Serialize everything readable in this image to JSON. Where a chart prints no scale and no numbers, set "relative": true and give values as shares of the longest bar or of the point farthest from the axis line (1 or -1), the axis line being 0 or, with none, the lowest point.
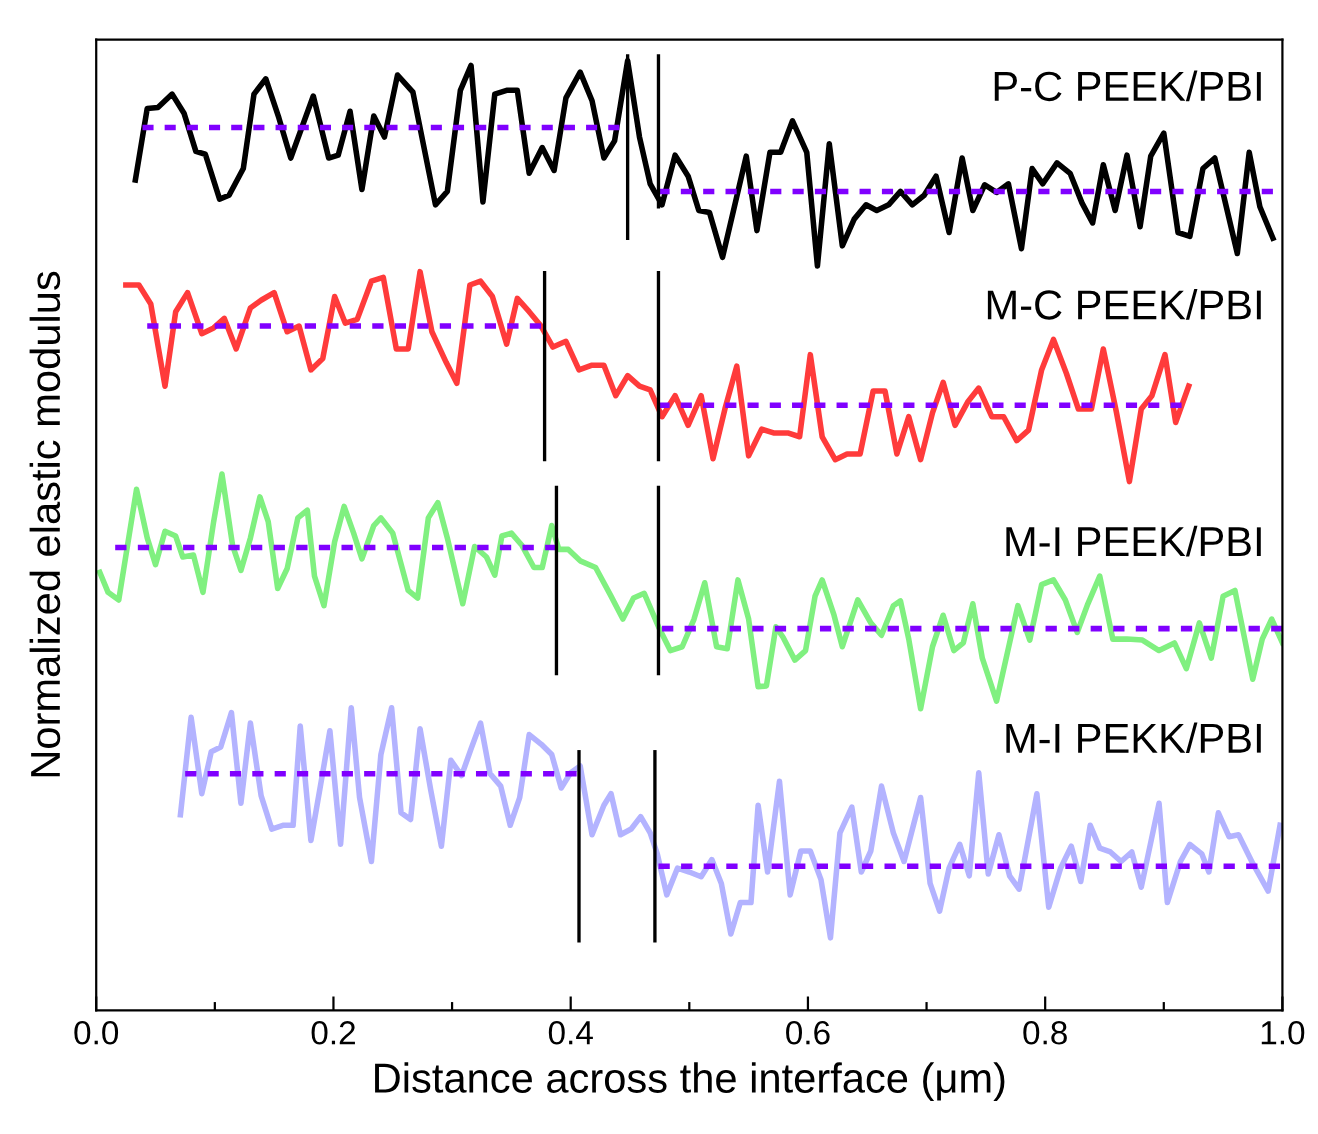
{
  "chart_data": {
    "type": "line",
    "relative": true,
    "xlabel": "Distance across the interface (μm)",
    "ylabel": "Normalized elastic modulus",
    "xlim": [
      0,
      1.0
    ],
    "xticks": [
      {
        "value": 0,
        "label": "0.0"
      },
      {
        "value": 0.1,
        "label": null
      },
      {
        "value": 0.2,
        "label": "0.2"
      },
      {
        "value": 0.3,
        "label": null
      },
      {
        "value": 0.4,
        "label": "0.4"
      },
      {
        "value": 0.5,
        "label": null
      },
      {
        "value": 0.6,
        "label": "0.6"
      },
      {
        "value": 0.7,
        "label": null
      },
      {
        "value": 0.8,
        "label": "0.8"
      },
      {
        "value": 0.9,
        "label": null
      },
      {
        "value": 1.0,
        "label": "1.0"
      }
    ],
    "series": [
      {
        "name": "P-C PEEK/PBI",
        "type": "line",
        "color": "#000000",
        "x": [
          0.033,
          0.043,
          0.052,
          0.064,
          0.074,
          0.084,
          0.092,
          0.104,
          0.112,
          0.124,
          0.133,
          0.143,
          0.154,
          0.164,
          0.183,
          0.196,
          0.204,
          0.214,
          0.224,
          0.234,
          0.243,
          0.254,
          0.267,
          0.286,
          0.296,
          0.307,
          0.316,
          0.326,
          0.336,
          0.346,
          0.355,
          0.365,
          0.376,
          0.386,
          0.396,
          0.408,
          0.418,
          0.428,
          0.437,
          0.448,
          0.458,
          0.467,
          0.477,
          0.488,
          0.499,
          0.508,
          0.517,
          0.528,
          0.548,
          0.557,
          0.568,
          0.577,
          0.587,
          0.599,
          0.608,
          0.618,
          0.629,
          0.639,
          0.649,
          0.658,
          0.668,
          0.678,
          0.688,
          0.698,
          0.708,
          0.719,
          0.73,
          0.739,
          0.749,
          0.759,
          0.769,
          0.78,
          0.789,
          0.798,
          0.81,
          0.821,
          0.831,
          0.84,
          0.849,
          0.859,
          0.869,
          0.88,
          0.889,
          0.9,
          0.912,
          0.922,
          0.933,
          0.943,
          0.962,
          0.972,
          0.981,
          0.992
        ],
        "values": [
          0.87,
          0.945,
          0.946,
          0.96,
          0.94,
          0.9,
          0.897,
          0.85,
          0.854,
          0.882,
          0.96,
          0.976,
          0.935,
          0.893,
          0.958,
          0.893,
          0.896,
          0.942,
          0.86,
          0.937,
          0.915,
          0.98,
          0.962,
          0.844,
          0.858,
          0.964,
          0.99,
          0.847,
          0.96,
          0.964,
          0.964,
          0.877,
          0.904,
          0.88,
          0.956,
          0.983,
          0.953,
          0.893,
          0.911,
          0.995,
          0.915,
          0.866,
          0.844,
          0.896,
          0.874,
          0.838,
          0.836,
          0.789,
          0.895,
          0.817,
          0.899,
          0.899,
          0.932,
          0.899,
          0.78,
          0.908,
          0.801,
          0.829,
          0.844,
          0.838,
          0.844,
          0.858,
          0.844,
          0.854,
          0.874,
          0.815,
          0.893,
          0.838,
          0.865,
          0.857,
          0.866,
          0.798,
          0.882,
          0.866,
          0.888,
          0.877,
          0.846,
          0.825,
          0.886,
          0.838,
          0.896,
          0.821,
          0.895,
          0.919,
          0.815,
          0.811,
          0.882,
          0.893,
          0.793,
          0.899,
          0.842,
          0.809
        ]
      },
      {
        "type": "line",
        "color": "#8000ff",
        "line_style": "dashed",
        "x": [
          0.039,
          0.441
        ],
        "values": [
          0.925,
          0.925
        ]
      },
      {
        "type": "line",
        "color": "#8000ff",
        "line_style": "dashed",
        "x": [
          0.474,
          0.992
        ],
        "values": [
          0.858,
          0.858
        ]
      },
      {
        "type": "line",
        "color": "#000000",
        "line_style": "solid",
        "x": [
          0.448,
          0.448
        ],
        "values": [
          1.0,
          0.809
        ]
      },
      {
        "type": "line",
        "color": "#000000",
        "line_style": "solid",
        "x": [
          0.474,
          0.474
        ],
        "values": [
          1.0,
          0.842
        ]
      },
      {
        "name": "M-C PEEK/PBI",
        "type": "line",
        "color": "#ff3b3b",
        "x": [
          0.025,
          0.036,
          0.046,
          0.058,
          0.067,
          0.077,
          0.089,
          0.099,
          0.108,
          0.118,
          0.13,
          0.139,
          0.15,
          0.161,
          0.171,
          0.181,
          0.191,
          0.201,
          0.21,
          0.22,
          0.232,
          0.242,
          0.253,
          0.263,
          0.273,
          0.283,
          0.295,
          0.304,
          0.315,
          0.324,
          0.334,
          0.346,
          0.355,
          0.365,
          0.375,
          0.385,
          0.396,
          0.407,
          0.418,
          0.428,
          0.438,
          0.448,
          0.458,
          0.467,
          0.477,
          0.488,
          0.499,
          0.51,
          0.52,
          0.53,
          0.54,
          0.55,
          0.561,
          0.571,
          0.583,
          0.593,
          0.602,
          0.612,
          0.623,
          0.633,
          0.644,
          0.655,
          0.665,
          0.675,
          0.685,
          0.695,
          0.705,
          0.714,
          0.724,
          0.735,
          0.744,
          0.755,
          0.765,
          0.776,
          0.786,
          0.797,
          0.807,
          0.818,
          0.828,
          0.839,
          0.849,
          0.86,
          0.871,
          0.881,
          0.89,
          0.901,
          0.91,
          0.921
        ],
        "values": [
          0.76,
          0.76,
          0.74,
          0.654,
          0.732,
          0.752,
          0.709,
          0.715,
          0.725,
          0.693,
          0.736,
          0.744,
          0.752,
          0.711,
          0.717,
          0.671,
          0.683,
          0.748,
          0.72,
          0.724,
          0.764,
          0.768,
          0.693,
          0.693,
          0.774,
          0.711,
          0.679,
          0.657,
          0.76,
          0.764,
          0.748,
          0.698,
          0.746,
          0.732,
          0.717,
          0.695,
          0.701,
          0.671,
          0.676,
          0.676,
          0.644,
          0.665,
          0.654,
          0.65,
          0.622,
          0.644,
          0.613,
          0.644,
          0.578,
          0.63,
          0.675,
          0.581,
          0.609,
          0.605,
          0.605,
          0.601,
          0.687,
          0.601,
          0.577,
          0.583,
          0.583,
          0.649,
          0.649,
          0.583,
          0.622,
          0.577,
          0.626,
          0.658,
          0.613,
          0.638,
          0.652,
          0.622,
          0.622,
          0.597,
          0.608,
          0.671,
          0.703,
          0.667,
          0.63,
          0.63,
          0.693,
          0.627,
          0.554,
          0.63,
          0.644,
          0.687,
          0.616,
          0.654
        ]
      },
      {
        "type": "line",
        "color": "#8000ff",
        "line_style": "dashed",
        "x": [
          0.043,
          0.375
        ],
        "values": [
          0.717,
          0.717
        ]
      },
      {
        "type": "line",
        "color": "#8000ff",
        "line_style": "dashed",
        "x": [
          0.474,
          0.915
        ],
        "values": [
          0.634,
          0.634
        ]
      },
      {
        "type": "line",
        "color": "#000000",
        "line_style": "solid",
        "x": [
          0.378,
          0.378
        ],
        "values": [
          0.773,
          0.577
        ]
      },
      {
        "type": "line",
        "color": "#000000",
        "line_style": "solid",
        "x": [
          0.474,
          0.474
        ],
        "values": [
          0.773,
          0.577
        ]
      },
      {
        "name": "M-I PEEK/PBI",
        "type": "line",
        "color": "#80f080",
        "x": [
          0.003,
          0.01,
          0.019,
          0.034,
          0.043,
          0.05,
          0.058,
          0.067,
          0.073,
          0.082,
          0.09,
          0.099,
          0.106,
          0.115,
          0.122,
          0.13,
          0.138,
          0.145,
          0.153,
          0.161,
          0.17,
          0.178,
          0.184,
          0.192,
          0.201,
          0.209,
          0.217,
          0.224,
          0.234,
          0.24,
          0.25,
          0.263,
          0.271,
          0.28,
          0.288,
          0.296,
          0.309,
          0.319,
          0.329,
          0.336,
          0.342,
          0.35,
          0.359,
          0.369,
          0.376,
          0.384,
          0.39,
          0.398,
          0.408,
          0.421,
          0.434,
          0.444,
          0.453,
          0.462,
          0.474,
          0.484,
          0.494,
          0.504,
          0.513,
          0.523,
          0.532,
          0.541,
          0.55,
          0.558,
          0.565,
          0.573,
          0.579,
          0.589,
          0.598,
          0.606,
          0.612,
          0.622,
          0.629,
          0.642,
          0.653,
          0.662,
          0.672,
          0.678,
          0.685,
          0.695,
          0.705,
          0.714,
          0.723,
          0.731,
          0.739,
          0.747,
          0.759,
          0.77,
          0.777,
          0.787,
          0.797,
          0.807,
          0.817,
          0.827,
          0.836,
          0.846,
          0.857,
          0.869,
          0.882,
          0.896,
          0.909,
          0.919,
          0.93,
          0.94,
          0.95,
          0.96,
          0.975,
          0.983,
          0.991,
          1.0
        ],
        "values": [
          0.459,
          0.438,
          0.43,
          0.546,
          0.495,
          0.467,
          0.502,
          0.497,
          0.475,
          0.477,
          0.438,
          0.512,
          0.562,
          0.487,
          0.461,
          0.495,
          0.538,
          0.512,
          0.442,
          0.463,
          0.516,
          0.524,
          0.455,
          0.424,
          0.491,
          0.528,
          0.5,
          0.473,
          0.508,
          0.516,
          0.5,
          0.44,
          0.432,
          0.516,
          0.532,
          0.495,
          0.426,
          0.486,
          0.475,
          0.456,
          0.497,
          0.5,
          0.487,
          0.464,
          0.464,
          0.508,
          0.483,
          0.483,
          0.471,
          0.464,
          0.434,
          0.41,
          0.432,
          0.437,
          0.402,
          0.377,
          0.381,
          0.41,
          0.448,
          0.381,
          0.379,
          0.451,
          0.41,
          0.339,
          0.34,
          0.402,
          0.391,
          0.367,
          0.377,
          0.434,
          0.451,
          0.414,
          0.381,
          0.43,
          0.406,
          0.393,
          0.424,
          0.429,
          0.389,
          0.316,
          0.381,
          0.414,
          0.377,
          0.385,
          0.426,
          0.369,
          0.324,
          0.385,
          0.424,
          0.388,
          0.446,
          0.451,
          0.43,
          0.396,
          0.426,
          0.455,
          0.389,
          0.389,
          0.388,
          0.377,
          0.385,
          0.358,
          0.406,
          0.369,
          0.434,
          0.44,
          0.347,
          0.389,
          0.41,
          0.385
        ]
      },
      {
        "type": "line",
        "color": "#8000ff",
        "line_style": "dashed",
        "x": [
          0.016,
          0.388
        ],
        "values": [
          0.485,
          0.485
        ]
      },
      {
        "type": "line",
        "color": "#8000ff",
        "line_style": "dashed",
        "x": [
          0.477,
          1.0
        ],
        "values": [
          0.4,
          0.4
        ]
      },
      {
        "type": "line",
        "color": "#000000",
        "line_style": "solid",
        "x": [
          0.388,
          0.388
        ],
        "values": [
          0.548,
          0.353
        ]
      },
      {
        "type": "line",
        "color": "#000000",
        "line_style": "solid",
        "x": [
          0.474,
          0.474
        ],
        "values": [
          0.548,
          0.353
        ]
      },
      {
        "name": "M-I PEKK/PBI",
        "type": "line",
        "color": "#b3b3ff",
        "x": [
          0.071,
          0.08,
          0.089,
          0.097,
          0.105,
          0.114,
          0.122,
          0.13,
          0.139,
          0.148,
          0.158,
          0.166,
          0.172,
          0.181,
          0.189,
          0.197,
          0.206,
          0.215,
          0.222,
          0.232,
          0.24,
          0.249,
          0.257,
          0.265,
          0.273,
          0.282,
          0.291,
          0.299,
          0.308,
          0.316,
          0.324,
          0.332,
          0.341,
          0.349,
          0.357,
          0.365,
          0.375,
          0.384,
          0.392,
          0.4,
          0.408,
          0.418,
          0.428,
          0.434,
          0.442,
          0.451,
          0.459,
          0.467,
          0.473,
          0.481,
          0.49,
          0.5,
          0.51,
          0.519,
          0.527,
          0.535,
          0.543,
          0.552,
          0.558,
          0.566,
          0.576,
          0.585,
          0.594,
          0.602,
          0.611,
          0.619,
          0.627,
          0.637,
          0.645,
          0.653,
          0.662,
          0.672,
          0.681,
          0.695,
          0.703,
          0.711,
          0.719,
          0.728,
          0.736,
          0.744,
          0.752,
          0.761,
          0.77,
          0.778,
          0.793,
          0.803,
          0.813,
          0.822,
          0.83,
          0.838,
          0.846,
          0.855,
          0.864,
          0.873,
          0.881,
          0.896,
          0.903,
          0.914,
          0.922,
          0.932,
          0.938,
          0.946,
          0.955,
          0.963,
          0.975,
          0.988,
          0.998
        ],
        "values": [
          0.205,
          0.307,
          0.227,
          0.271,
          0.276,
          0.312,
          0.217,
          0.301,
          0.225,
          0.19,
          0.194,
          0.194,
          0.298,
          0.178,
          0.235,
          0.293,
          0.174,
          0.317,
          0.223,
          0.156,
          0.268,
          0.317,
          0.207,
          0.2,
          0.295,
          0.231,
          0.172,
          0.262,
          0.246,
          0.274,
          0.301,
          0.248,
          0.235,
          0.194,
          0.223,
          0.289,
          0.279,
          0.268,
          0.233,
          0.249,
          0.256,
          0.184,
          0.215,
          0.227,
          0.184,
          0.19,
          0.203,
          0.186,
          0.164,
          0.121,
          0.149,
          0.145,
          0.14,
          0.158,
          0.133,
          0.08,
          0.113,
          0.113,
          0.215,
          0.145,
          0.24,
          0.121,
          0.167,
          0.167,
          0.137,
          0.076,
          0.186,
          0.213,
          0.145,
          0.167,
          0.235,
          0.186,
          0.156,
          0.223,
          0.133,
          0.104,
          0.149,
          0.174,
          0.141,
          0.249,
          0.143,
          0.184,
          0.141,
          0.127,
          0.227,
          0.108,
          0.149,
          0.172,
          0.135,
          0.194,
          0.17,
          0.166,
          0.156,
          0.166,
          0.129,
          0.217,
          0.113,
          0.156,
          0.174,
          0.164,
          0.145,
          0.207,
          0.182,
          0.184,
          0.154,
          0.125,
          0.194
        ]
      },
      {
        "type": "line",
        "color": "#8000ff",
        "line_style": "dashed",
        "x": [
          0.075,
          0.405
        ],
        "values": [
          0.248,
          0.248
        ]
      },
      {
        "type": "line",
        "color": "#8000ff",
        "line_style": "dashed",
        "x": [
          0.474,
          0.998
        ],
        "values": [
          0.151,
          0.151
        ]
      },
      {
        "type": "line",
        "color": "#000000",
        "line_style": "solid",
        "x": [
          0.407,
          0.407
        ],
        "values": [
          0.271,
          0.073
        ]
      },
      {
        "type": "line",
        "color": "#000000",
        "line_style": "solid",
        "x": [
          0.471,
          0.471
        ],
        "values": [
          0.271,
          0.073
        ]
      }
    ]
  }
}
